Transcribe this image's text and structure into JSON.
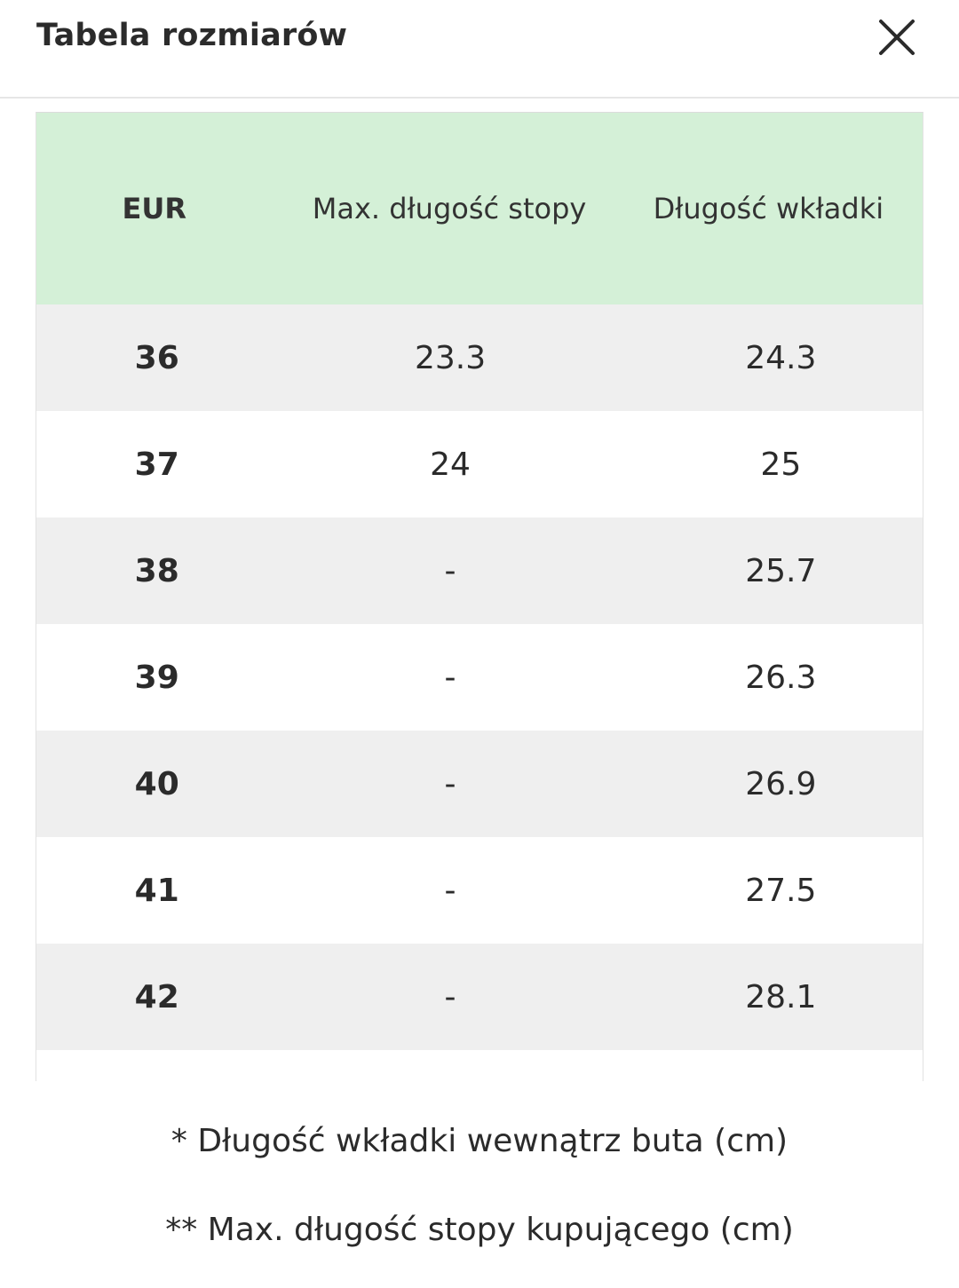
{
  "header": {
    "title": "Tabela rozmiarów",
    "close_icon": "close-icon"
  },
  "table": {
    "header_bg": "#d4f0d7",
    "columns": [
      "EUR",
      "Max. długość stopy",
      "Długość wkładki"
    ],
    "rows": [
      [
        "36",
        "23.3",
        "24.3"
      ],
      [
        "37",
        "24",
        "25"
      ],
      [
        "38",
        "-",
        "25.7"
      ],
      [
        "39",
        "-",
        "26.3"
      ],
      [
        "40",
        "-",
        "26.9"
      ],
      [
        "41",
        "-",
        "27.5"
      ],
      [
        "42",
        "-",
        "28.1"
      ],
      [
        "",
        "",
        ""
      ]
    ]
  },
  "notes": [
    "* Długość wkładki wewnątrz buta (cm)",
    "** Max. długość stopy kupującego (cm)"
  ]
}
